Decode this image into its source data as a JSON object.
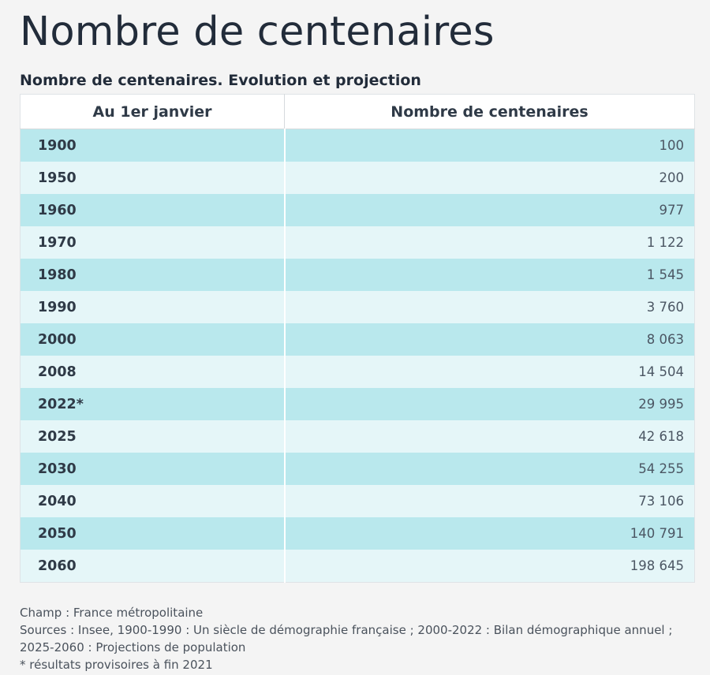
{
  "page_title": "Nombre de centenaires",
  "table_title": "Nombre de centenaires. Evolution et projection",
  "columns": [
    "Au 1er janvier",
    "Nombre de centenaires"
  ],
  "rows": [
    {
      "year": "1900",
      "value": "100"
    },
    {
      "year": "1950",
      "value": "200"
    },
    {
      "year": "1960",
      "value": "977"
    },
    {
      "year": "1970",
      "value": "1 122"
    },
    {
      "year": "1980",
      "value": "1 545"
    },
    {
      "year": "1990",
      "value": "3 760"
    },
    {
      "year": "2000",
      "value": "8 063"
    },
    {
      "year": "2008",
      "value": "14 504"
    },
    {
      "year": "2022*",
      "value": "29 995"
    },
    {
      "year": "2025",
      "value": "42 618"
    },
    {
      "year": "2030",
      "value": "54 255"
    },
    {
      "year": "2040",
      "value": "73 106"
    },
    {
      "year": "2050",
      "value": "140 791"
    },
    {
      "year": "2060",
      "value": "198 645"
    }
  ],
  "footnotes": [
    "Champ : France métropolitaine",
    "Sources : Insee, 1900-1990 : Un siècle de démographie française ; 2000-2022 : Bilan démographique annuel ; 2025-2060 : Projections de population",
    "* résultats provisoires à fin 2021"
  ],
  "colors": {
    "row_dark": "#b9e8ed",
    "row_light": "#e5f6f8",
    "title": "#222c3a"
  },
  "chart_data": {
    "type": "table",
    "title": "Nombre de centenaires. Evolution et projection",
    "columns": [
      "Au 1er janvier",
      "Nombre de centenaires"
    ],
    "categories": [
      "1900",
      "1950",
      "1960",
      "1970",
      "1980",
      "1990",
      "2000",
      "2008",
      "2022*",
      "2025",
      "2030",
      "2040",
      "2050",
      "2060"
    ],
    "values": [
      100,
      200,
      977,
      1122,
      1545,
      3760,
      8063,
      14504,
      29995,
      42618,
      54255,
      73106,
      140791,
      198645
    ]
  }
}
